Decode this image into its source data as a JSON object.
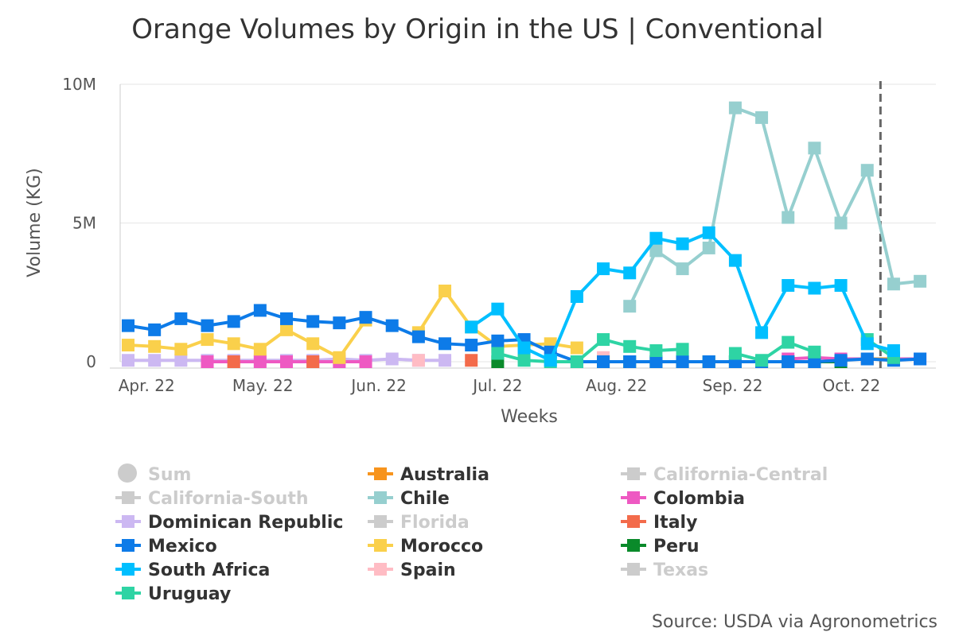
{
  "chart_data": {
    "type": "line",
    "title": "Orange Volumes by Origin in the US | Conventional",
    "xlabel": "Weeks",
    "ylabel": "Volume (KG)",
    "ylim": [
      0,
      10000000
    ],
    "yticks": [
      {
        "value": 0,
        "label": "0"
      },
      {
        "value": 5000000,
        "label": "5M"
      },
      {
        "value": 10000000,
        "label": "10M"
      }
    ],
    "xlim": [
      0,
      30.6
    ],
    "xticks": [
      {
        "x": 0.7,
        "label": "Apr. 22"
      },
      {
        "x": 5.1,
        "label": "May. 22"
      },
      {
        "x": 9.5,
        "label": "Jun. 22"
      },
      {
        "x": 14.0,
        "label": "Jul. 22"
      },
      {
        "x": 18.5,
        "label": "Aug. 22"
      },
      {
        "x": 22.9,
        "label": "Sep. 22"
      },
      {
        "x": 27.4,
        "label": "Oct. 22"
      }
    ],
    "current_week_x": 28.5,
    "legend_position": "bottom",
    "source": "Source: USDA via Agronometrics",
    "series": [
      {
        "name": "Sum",
        "color": "#cccccc",
        "marker": "circle",
        "visible": false,
        "values": []
      },
      {
        "name": "Australia",
        "color": "#f7941d",
        "marker": "square",
        "visible": true,
        "values": [
          null,
          null,
          null,
          null,
          null,
          null,
          null,
          null,
          null,
          null,
          null,
          null,
          null,
          null,
          null,
          null,
          null,
          null,
          null,
          null,
          null,
          null,
          null,
          null,
          null,
          null,
          null,
          null,
          100000,
          100000,
          null
        ]
      },
      {
        "name": "California-Central",
        "color": "#cccccc",
        "marker": "square",
        "visible": false,
        "values": []
      },
      {
        "name": "California-South",
        "color": "#cccccc",
        "marker": "square",
        "visible": false,
        "values": []
      },
      {
        "name": "Chile",
        "color": "#96cfcf",
        "marker": "square",
        "visible": true,
        "values": [
          null,
          null,
          null,
          null,
          null,
          null,
          null,
          null,
          null,
          null,
          null,
          null,
          null,
          null,
          null,
          null,
          null,
          null,
          null,
          2000000,
          4000000,
          3350000,
          4100000,
          9150000,
          8800000,
          5200000,
          7700000,
          5000000,
          6900000,
          2800000,
          2900000
        ]
      },
      {
        "name": "Colombia",
        "color": "#ee59c2",
        "marker": "square",
        "visible": true,
        "values": [
          null,
          null,
          null,
          0,
          0,
          0,
          0,
          0,
          0,
          0,
          null,
          null,
          null,
          null,
          null,
          null,
          null,
          null,
          null,
          null,
          null,
          null,
          null,
          null,
          null,
          100000,
          150000,
          100000,
          100000,
          100000,
          100000
        ]
      },
      {
        "name": "Dominican Republic",
        "color": "#ccb8f2",
        "marker": "square",
        "visible": true,
        "values": [
          50000,
          50000,
          50000,
          50000,
          50000,
          50000,
          50000,
          50000,
          100000,
          50000,
          100000,
          50000,
          50000,
          null,
          null,
          null,
          null,
          null,
          null,
          null,
          null,
          null,
          null,
          null,
          null,
          null,
          null,
          null,
          null,
          null,
          null
        ]
      },
      {
        "name": "Florida",
        "color": "#cccccc",
        "marker": "square",
        "visible": false,
        "values": []
      },
      {
        "name": "Italy",
        "color": "#f36b4b",
        "marker": "square",
        "visible": true,
        "values": [
          null,
          null,
          null,
          null,
          0,
          null,
          null,
          0,
          null,
          null,
          null,
          null,
          null,
          50000,
          null,
          null,
          null,
          null,
          null,
          null,
          null,
          null,
          null,
          null,
          null,
          null,
          null,
          null,
          null,
          null,
          null
        ]
      },
      {
        "name": "Mexico",
        "color": "#0d7be8",
        "marker": "square",
        "visible": true,
        "values": [
          1300000,
          1150000,
          1550000,
          1300000,
          1450000,
          1850000,
          1550000,
          1450000,
          1400000,
          1600000,
          1300000,
          900000,
          650000,
          600000,
          750000,
          800000,
          350000,
          0,
          0,
          0,
          0,
          0,
          0,
          0,
          0,
          0,
          0,
          50000,
          100000,
          50000,
          100000
        ]
      },
      {
        "name": "Morocco",
        "color": "#fad04b",
        "marker": "square",
        "visible": true,
        "values": [
          600000,
          550000,
          450000,
          800000,
          650000,
          450000,
          1150000,
          650000,
          150000,
          1500000,
          null,
          1050000,
          2550000,
          1250000,
          550000,
          600000,
          650000,
          500000,
          null,
          null,
          null,
          null,
          null,
          null,
          null,
          null,
          null,
          null,
          null,
          null,
          null
        ]
      },
      {
        "name": "Peru",
        "color": "#0a8a2a",
        "marker": "square",
        "visible": true,
        "values": [
          null,
          null,
          null,
          null,
          null,
          null,
          null,
          null,
          null,
          null,
          null,
          null,
          null,
          null,
          0,
          null,
          null,
          null,
          0,
          0,
          0,
          0,
          0,
          0,
          0,
          0,
          0,
          0,
          null,
          null,
          null
        ]
      },
      {
        "name": "South Africa",
        "color": "#00bfff",
        "marker": "square",
        "visible": true,
        "values": [
          null,
          null,
          null,
          null,
          null,
          null,
          null,
          null,
          null,
          null,
          null,
          null,
          null,
          1250000,
          1900000,
          500000,
          50000,
          2350000,
          3350000,
          3200000,
          4450000,
          4250000,
          4650000,
          3650000,
          1050000,
          2750000,
          2650000,
          2750000,
          650000,
          400000,
          null
        ]
      },
      {
        "name": "Spain",
        "color": "#ffbcc4",
        "marker": "square",
        "visible": true,
        "values": [
          null,
          null,
          null,
          null,
          null,
          null,
          null,
          null,
          null,
          null,
          null,
          50000,
          null,
          null,
          null,
          null,
          null,
          null,
          150000,
          null,
          null,
          null,
          null,
          null,
          null,
          null,
          null,
          null,
          null,
          null,
          null
        ]
      },
      {
        "name": "Texas",
        "color": "#cccccc",
        "marker": "square",
        "visible": false,
        "values": []
      },
      {
        "name": "Uruguay",
        "color": "#2ed4a4",
        "marker": "square",
        "visible": true,
        "values": [
          null,
          null,
          null,
          null,
          null,
          null,
          null,
          null,
          null,
          null,
          null,
          null,
          null,
          null,
          300000,
          50000,
          0,
          0,
          800000,
          550000,
          400000,
          450000,
          null,
          300000,
          50000,
          700000,
          350000,
          null,
          800000,
          150000,
          null
        ]
      }
    ]
  }
}
